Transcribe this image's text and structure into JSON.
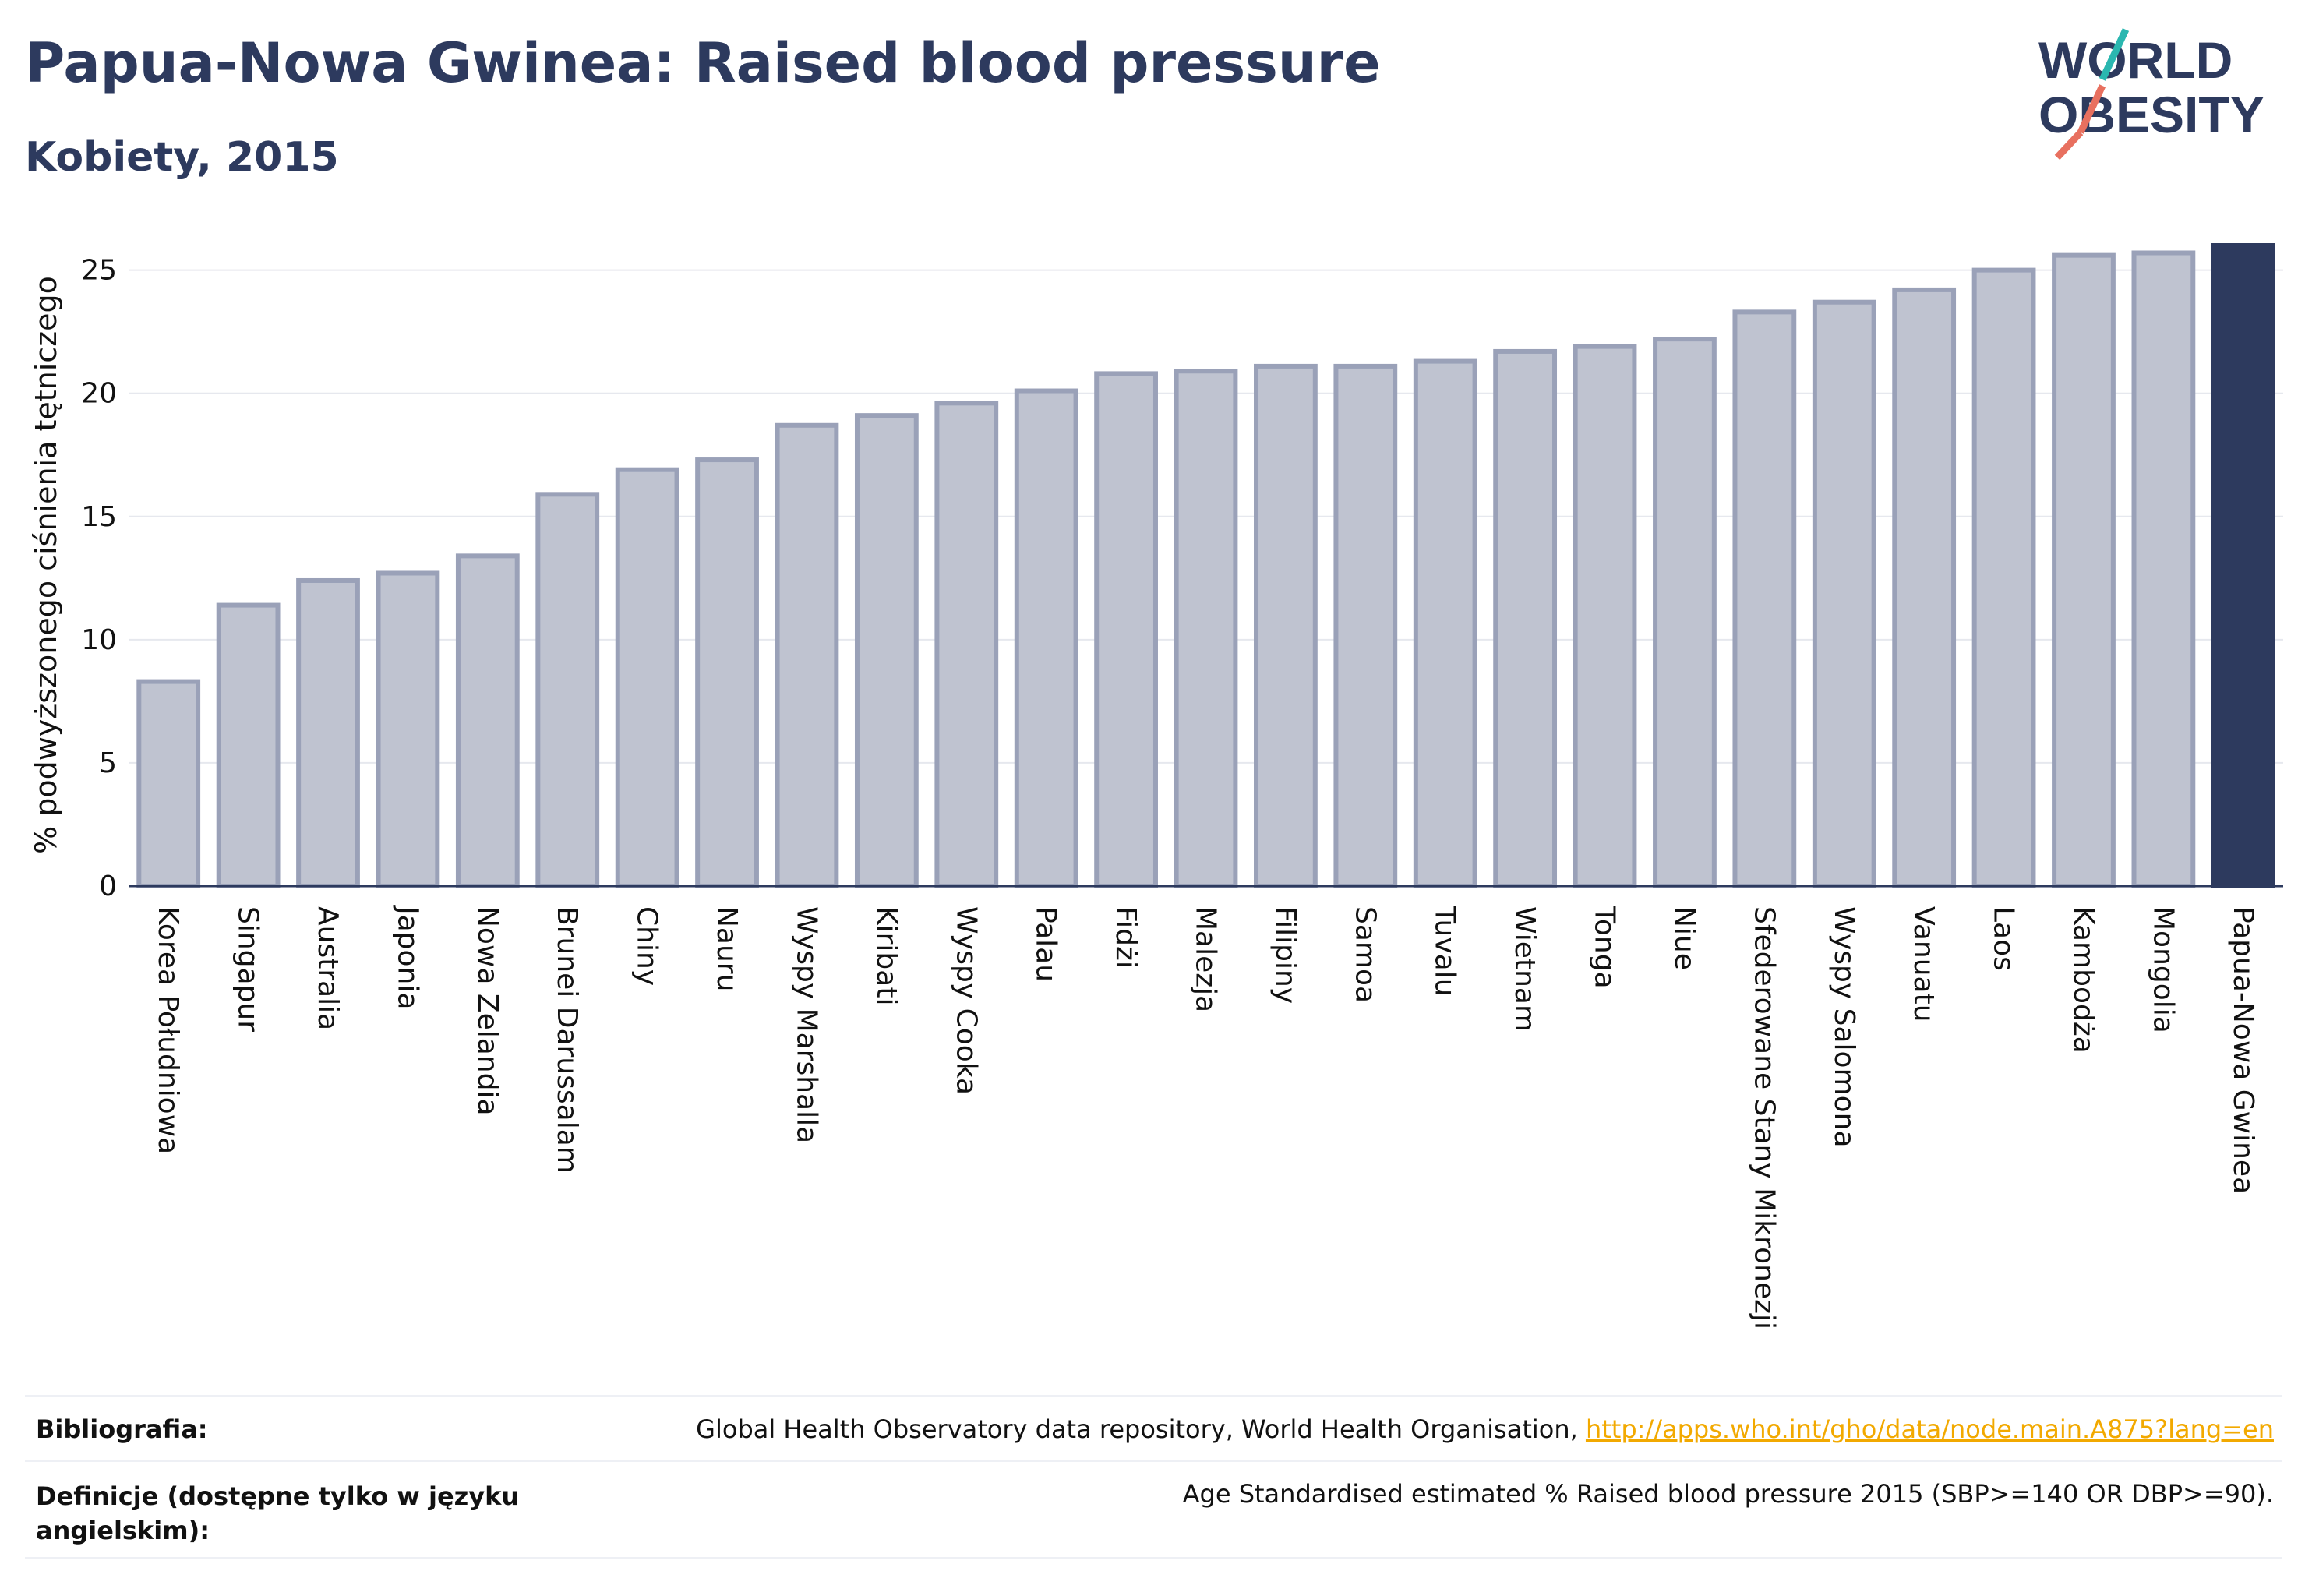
{
  "header": {
    "title": "Papua-Nowa Gwinea: Raised blood pressure",
    "subtitle": "Kobiety, 2015"
  },
  "logo": {
    "line1": "WORLD",
    "line2": "OBESITY"
  },
  "chart_data": {
    "type": "bar",
    "title": "Papua-Nowa Gwinea: Raised blood pressure",
    "subtitle": "Kobiety, 2015",
    "ylabel": "% podwyższonego ciśnienia tętniczego",
    "xlabel": "",
    "ylim": [
      0,
      26
    ],
    "yticks": [
      0,
      5,
      10,
      15,
      20,
      25
    ],
    "grid": true,
    "categories": [
      "Korea Południowa",
      "Singapur",
      "Australia",
      "Japonia",
      "Nowa Zelandia",
      "Brunei Darussalam",
      "Chiny",
      "Nauru",
      "Wyspy Marshalla",
      "Kiribati",
      "Wyspy Cooka",
      "Palau",
      "Fidżi",
      "Malezja",
      "Filipiny",
      "Samoa",
      "Tuvalu",
      "Wietnam",
      "Tonga",
      "Niue",
      "Sfederowane Stany Mikronezji",
      "Wyspy Salomona",
      "Vanuatu",
      "Laos",
      "Kambodża",
      "Mongolia",
      "Papua-Nowa Gwinea"
    ],
    "values": [
      8.3,
      11.4,
      12.4,
      12.7,
      13.4,
      15.9,
      16.9,
      17.3,
      18.7,
      19.1,
      19.6,
      20.1,
      20.8,
      20.9,
      21.1,
      21.1,
      21.3,
      21.7,
      21.9,
      22.2,
      23.3,
      23.7,
      24.2,
      25.0,
      25.6,
      25.7,
      26.0
    ],
    "highlight": "Papua-Nowa Gwinea",
    "colors": {
      "bar": "#bfc3d0",
      "bar_border": "#9aa1b8",
      "highlight": "#2d3a5e"
    }
  },
  "footer": {
    "bibliography_label": "Bibliografia:",
    "bibliography_text": "Global Health Observatory data repository, World Health Organisation, ",
    "bibliography_link": "http://apps.who.int/gho/data/node.main.A875?lang=en",
    "definitions_label": "Definicje (dostępne tylko w języku angielskim):",
    "definitions_text": "Age Standardised estimated % Raised blood pressure 2015 (SBP>=140 OR DBP>=90)."
  }
}
